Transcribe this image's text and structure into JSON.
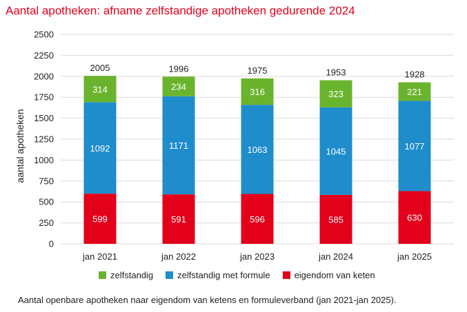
{
  "title": "Aantal apotheken: afname zelfstandige apotheken gedurende 2024",
  "caption": "Aantal openbare apotheken naar eigendom van ketens en formuleverband (jan 2021-jan 2025).",
  "colors": {
    "zelfstandig": "#6ab42d",
    "zelfstandig_met_formule": "#1f8ccc",
    "eigendom_van_keten": "#e2001a",
    "grid": "#d9d9d9",
    "title": "#e2001a"
  },
  "chart_data": {
    "type": "bar",
    "stacked": true,
    "categories": [
      "jan 2021",
      "jan 2022",
      "jan 2023",
      "jan 2024",
      "jan 2025"
    ],
    "series": [
      {
        "name": "eigendom van keten",
        "values": [
          599,
          591,
          596,
          585,
          630
        ]
      },
      {
        "name": "zelfstandig met formule",
        "values": [
          1092,
          1171,
          1063,
          1045,
          1077
        ]
      },
      {
        "name": "zelfstandig",
        "values": [
          314,
          234,
          316,
          323,
          221
        ]
      }
    ],
    "totals": [
      2005,
      1996,
      1975,
      1953,
      1928
    ],
    "ylabel": "aantal apotheken",
    "xlabel": "",
    "ylim": [
      0,
      2500
    ],
    "yticks": [
      0,
      250,
      500,
      750,
      1000,
      1250,
      1500,
      1750,
      2000,
      2250,
      2500
    ],
    "grid": true,
    "legend": "bottom",
    "legend_order": [
      "zelfstandig",
      "zelfstandig met formule",
      "eigendom van keten"
    ]
  }
}
